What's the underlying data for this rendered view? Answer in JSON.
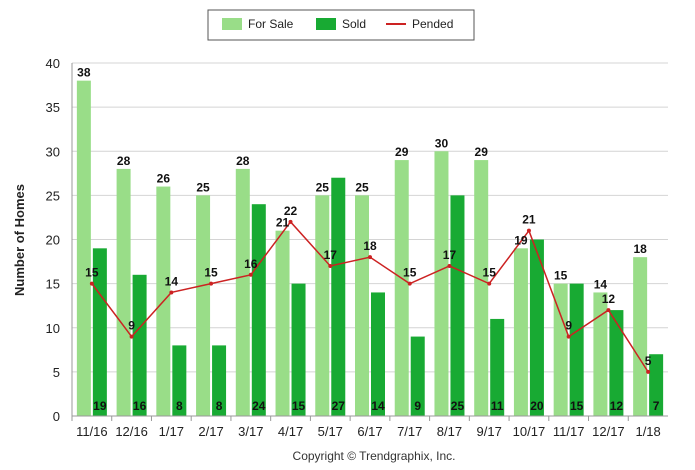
{
  "chart_data": {
    "type": "bar",
    "categories": [
      "11/16",
      "12/16",
      "1/17",
      "2/17",
      "3/17",
      "4/17",
      "5/17",
      "6/17",
      "7/17",
      "8/17",
      "9/17",
      "10/17",
      "11/17",
      "12/17",
      "1/18"
    ],
    "series": [
      {
        "name": "For Sale",
        "type": "bar",
        "color": "#99dd88",
        "values": [
          38,
          28,
          26,
          25,
          28,
          21,
          25,
          25,
          29,
          30,
          29,
          19,
          15,
          14,
          18
        ]
      },
      {
        "name": "Sold",
        "type": "bar",
        "color": "#18aa33",
        "values": [
          19,
          16,
          8,
          8,
          24,
          15,
          27,
          14,
          9,
          25,
          11,
          20,
          15,
          12,
          7
        ]
      },
      {
        "name": "Pended",
        "type": "line",
        "color": "#cc2222",
        "values": [
          15,
          9,
          14,
          15,
          16,
          22,
          17,
          18,
          15,
          17,
          15,
          21,
          9,
          12,
          5
        ]
      }
    ],
    "ylabel": "Number of Homes",
    "xlabel": "",
    "ylim": [
      0,
      40
    ],
    "yticks": [
      0,
      5,
      10,
      15,
      20,
      25,
      30,
      35,
      40
    ],
    "grid": true,
    "legend": "top-center"
  },
  "footer": {
    "copyright": "Copyright © Trendgraphix, Inc."
  }
}
